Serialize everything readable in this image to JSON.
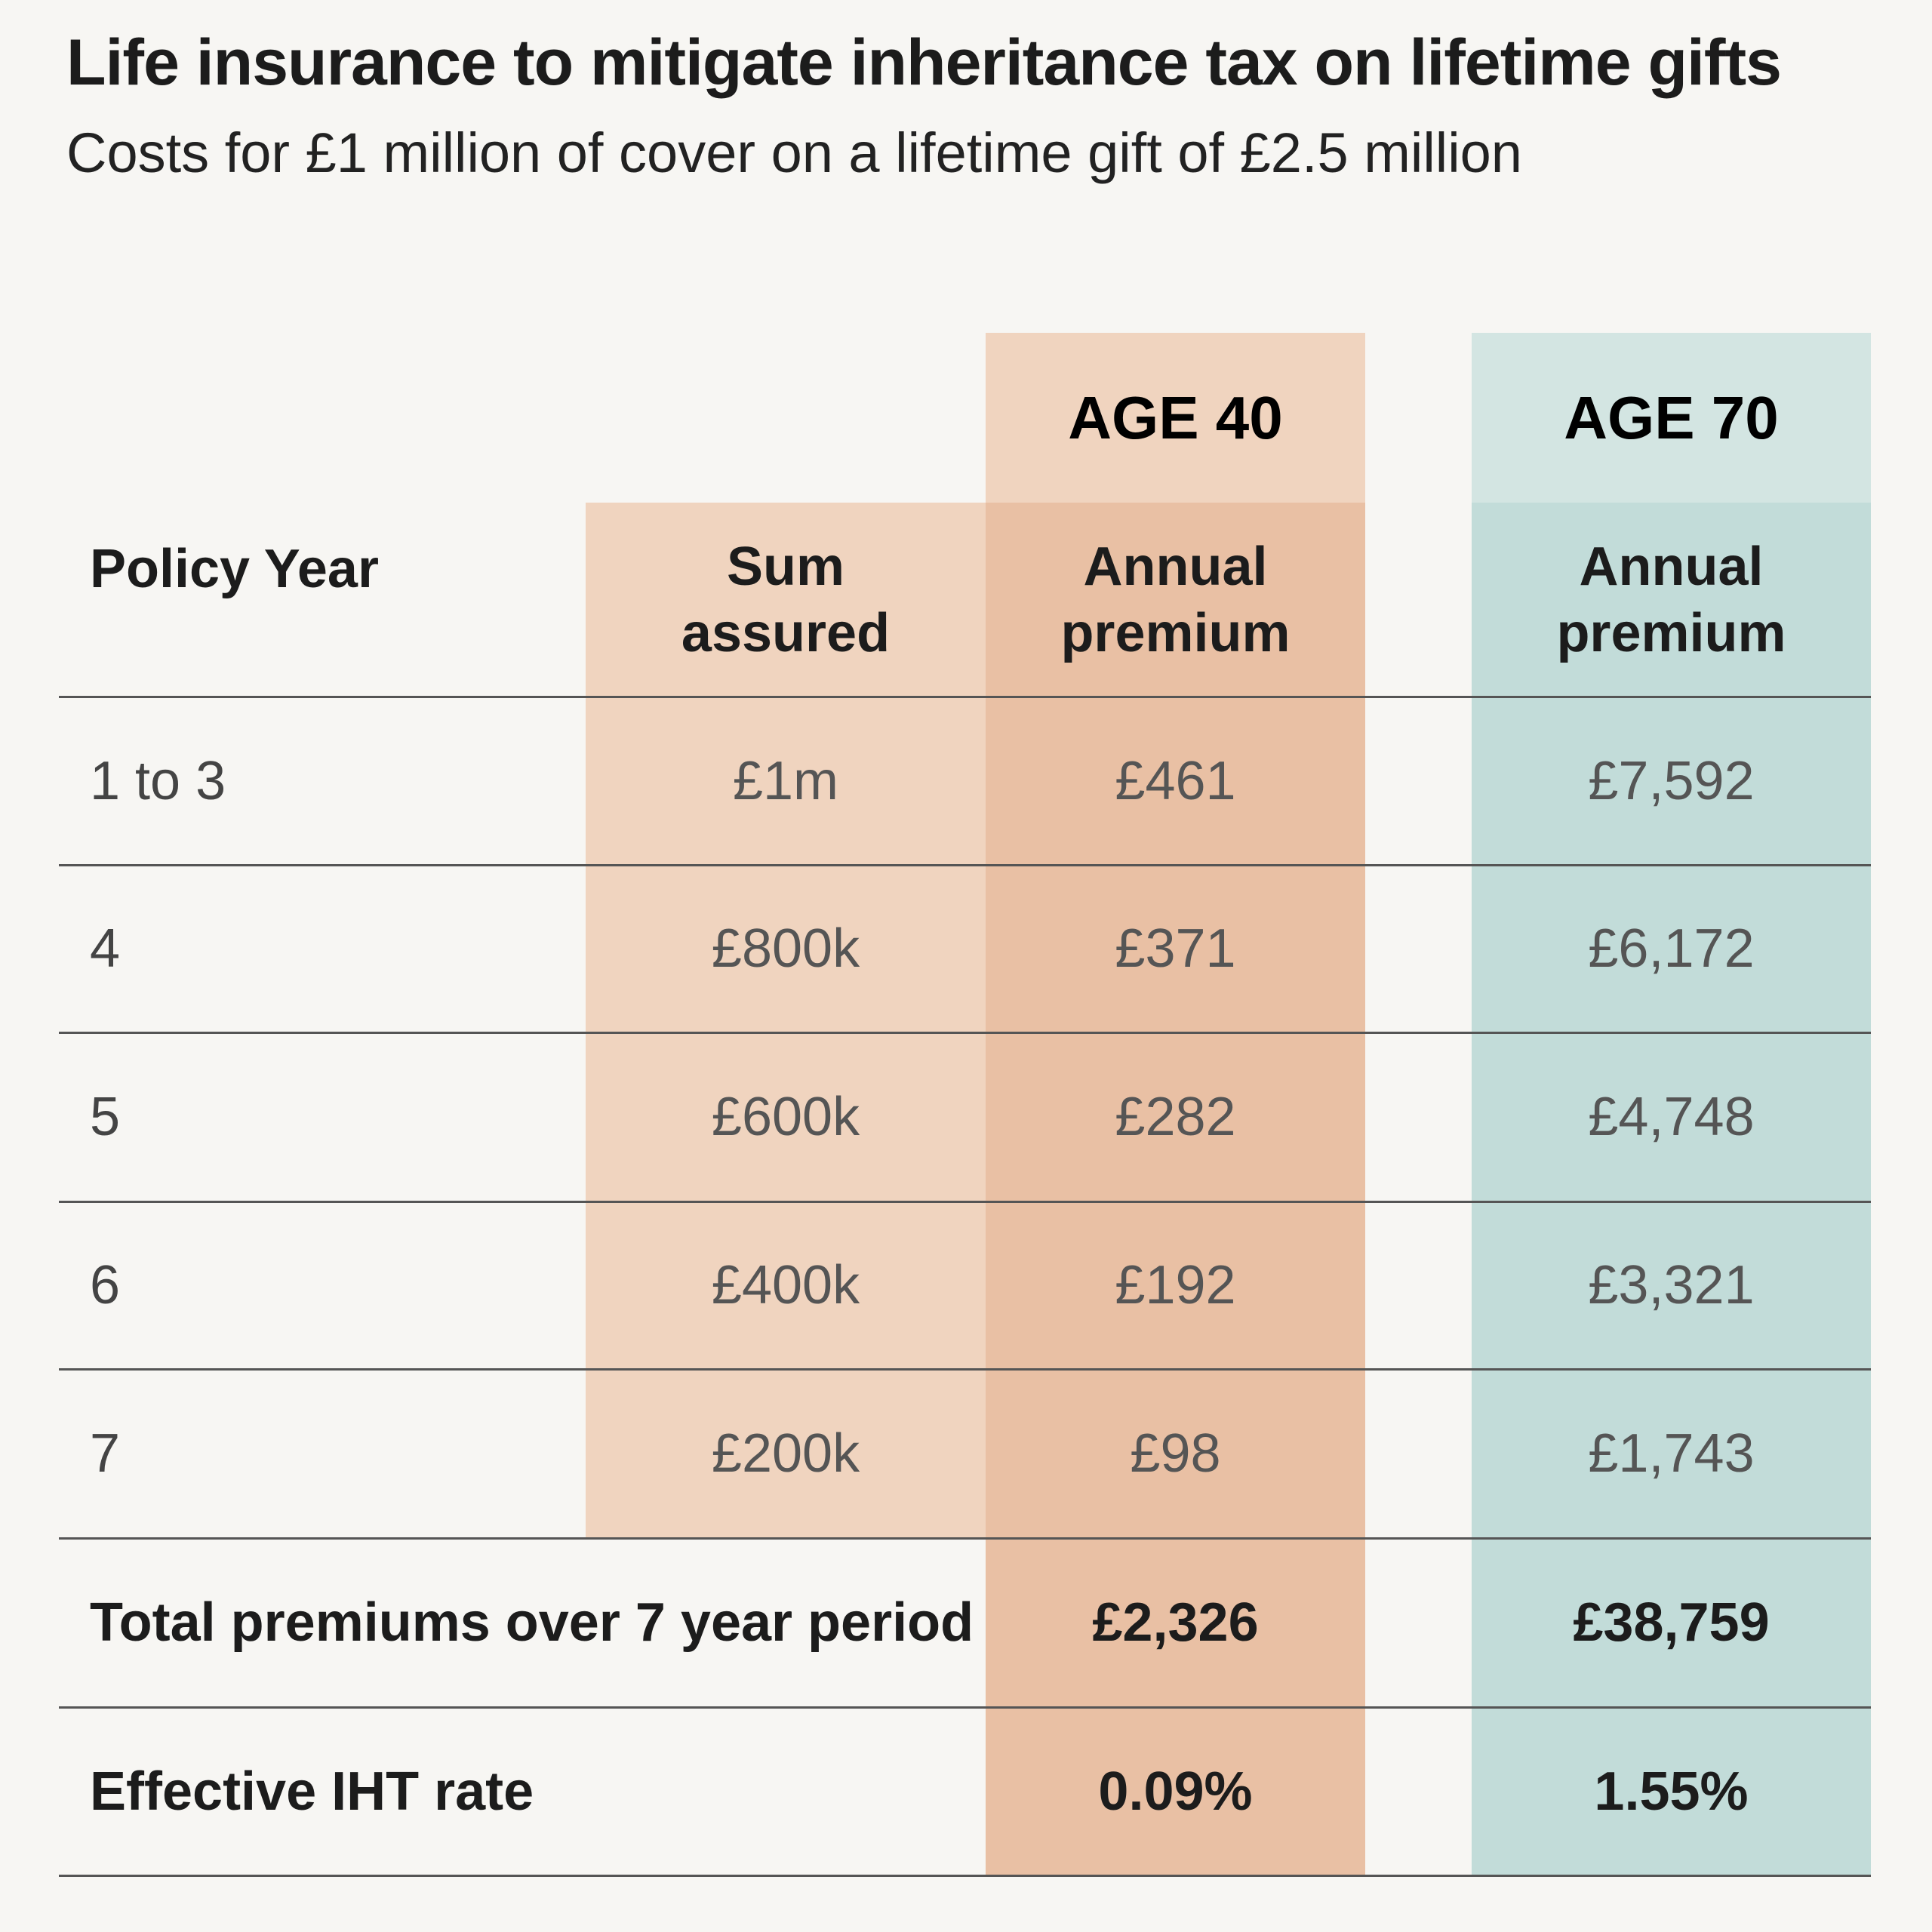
{
  "chart_data": {
    "type": "table",
    "title": "Life insurance to mitigate inheritance tax on lifetime gifts",
    "subtitle": "Costs for £1 million of cover on a lifetime gift of £2.5 million",
    "groups": [
      "AGE 40",
      "AGE 70"
    ],
    "columns": {
      "policy_year": "Policy Year",
      "sum_assured": "Sum assured",
      "annual_premium_40": "Annual premium",
      "annual_premium_70": "Annual premium"
    },
    "rows": [
      {
        "year": "1 to 3",
        "sum": "£1m",
        "p40": "£461",
        "p70": "£7,592"
      },
      {
        "year": "4",
        "sum": "£800k",
        "p40": "£371",
        "p70": "£6,172"
      },
      {
        "year": "5",
        "sum": "£600k",
        "p40": "£282",
        "p70": "£4,748"
      },
      {
        "year": "6",
        "sum": "£400k",
        "p40": "£192",
        "p70": "£3,321"
      },
      {
        "year": "7",
        "sum": "£200k",
        "p40": "£98",
        "p70": "£1,743"
      }
    ],
    "total": {
      "label": "Total premiums over 7 year period",
      "p40": "£2,326",
      "p70": "£38,759"
    },
    "rate": {
      "label": "Effective IHT rate",
      "p40": "0.09%",
      "p70": "1.55%"
    },
    "colors": {
      "peach_light": "#f0d4bf",
      "peach": "#e9c0a4",
      "teal_light": "#d3e5e2",
      "teal": "#c2dcd9",
      "background": "#f7f6f3"
    }
  }
}
